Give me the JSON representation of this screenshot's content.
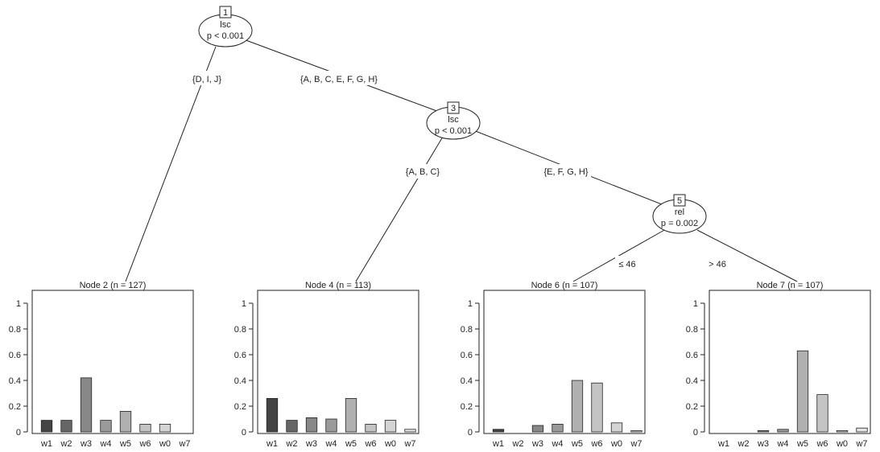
{
  "tree": {
    "inner_nodes": [
      {
        "id": "1",
        "variable": "lsc",
        "p_text": "p < 0.001"
      },
      {
        "id": "3",
        "variable": "lsc",
        "p_text": "p < 0.001"
      },
      {
        "id": "5",
        "variable": "rel",
        "p_text": "p = 0.002"
      }
    ],
    "edges": [
      {
        "from": "1",
        "to": "2",
        "label": "{D, I, J}"
      },
      {
        "from": "1",
        "to": "3",
        "label": "{A, B, C, E, F, G, H}"
      },
      {
        "from": "3",
        "to": "4",
        "label": "{A, B, C}"
      },
      {
        "from": "3",
        "to": "5",
        "label": "{E, F, G, H}"
      },
      {
        "from": "5",
        "to": "6",
        "label": "≤ 46"
      },
      {
        "from": "5",
        "to": "7",
        "label": "> 46"
      }
    ]
  },
  "chart_data": [
    {
      "type": "bar",
      "title": "Node 2 (n = 127)",
      "categories": [
        "w1",
        "w2",
        "w3",
        "w4",
        "w5",
        "w6",
        "w0",
        "w7"
      ],
      "values": [
        0.09,
        0.09,
        0.42,
        0.09,
        0.16,
        0.06,
        0.06,
        0.0
      ],
      "ylim": [
        0,
        1
      ],
      "yticks": [
        "0",
        "0.2",
        "0.4",
        "0.6",
        "0.8",
        "1"
      ],
      "colors": [
        "#444444",
        "#666666",
        "#888888",
        "#9a9a9a",
        "#b0b0b0",
        "#c4c4c4",
        "#d4d4d4",
        "#e4e4e4"
      ]
    },
    {
      "type": "bar",
      "title": "Node 4 (n = 113)",
      "categories": [
        "w1",
        "w2",
        "w3",
        "w4",
        "w5",
        "w6",
        "w0",
        "w7"
      ],
      "values": [
        0.26,
        0.09,
        0.11,
        0.1,
        0.26,
        0.06,
        0.09,
        0.02
      ],
      "ylim": [
        0,
        1
      ],
      "yticks": [
        "0",
        "0.2",
        "0.4",
        "0.6",
        "0.8",
        "1"
      ],
      "colors": [
        "#444444",
        "#666666",
        "#888888",
        "#9a9a9a",
        "#b0b0b0",
        "#c4c4c4",
        "#d4d4d4",
        "#e4e4e4"
      ]
    },
    {
      "type": "bar",
      "title": "Node 6 (n = 107)",
      "categories": [
        "w1",
        "w2",
        "w3",
        "w4",
        "w5",
        "w6",
        "w0",
        "w7"
      ],
      "values": [
        0.02,
        0.0,
        0.05,
        0.06,
        0.4,
        0.38,
        0.07,
        0.01
      ],
      "ylim": [
        0,
        1
      ],
      "yticks": [
        "0",
        "0.2",
        "0.4",
        "0.6",
        "0.8",
        "1"
      ],
      "colors": [
        "#444444",
        "#666666",
        "#888888",
        "#9a9a9a",
        "#b0b0b0",
        "#c4c4c4",
        "#d4d4d4",
        "#e4e4e4"
      ]
    },
    {
      "type": "bar",
      "title": "Node 7 (n = 107)",
      "categories": [
        "w1",
        "w2",
        "w3",
        "w4",
        "w5",
        "w6",
        "w0",
        "w7"
      ],
      "values": [
        0.0,
        0.0,
        0.01,
        0.02,
        0.63,
        0.29,
        0.01,
        0.03
      ],
      "ylim": [
        0,
        1
      ],
      "yticks": [
        "0",
        "0.2",
        "0.4",
        "0.6",
        "0.8",
        "1"
      ],
      "colors": [
        "#444444",
        "#666666",
        "#888888",
        "#9a9a9a",
        "#b0b0b0",
        "#c4c4c4",
        "#d4d4d4",
        "#e4e4e4"
      ]
    }
  ]
}
